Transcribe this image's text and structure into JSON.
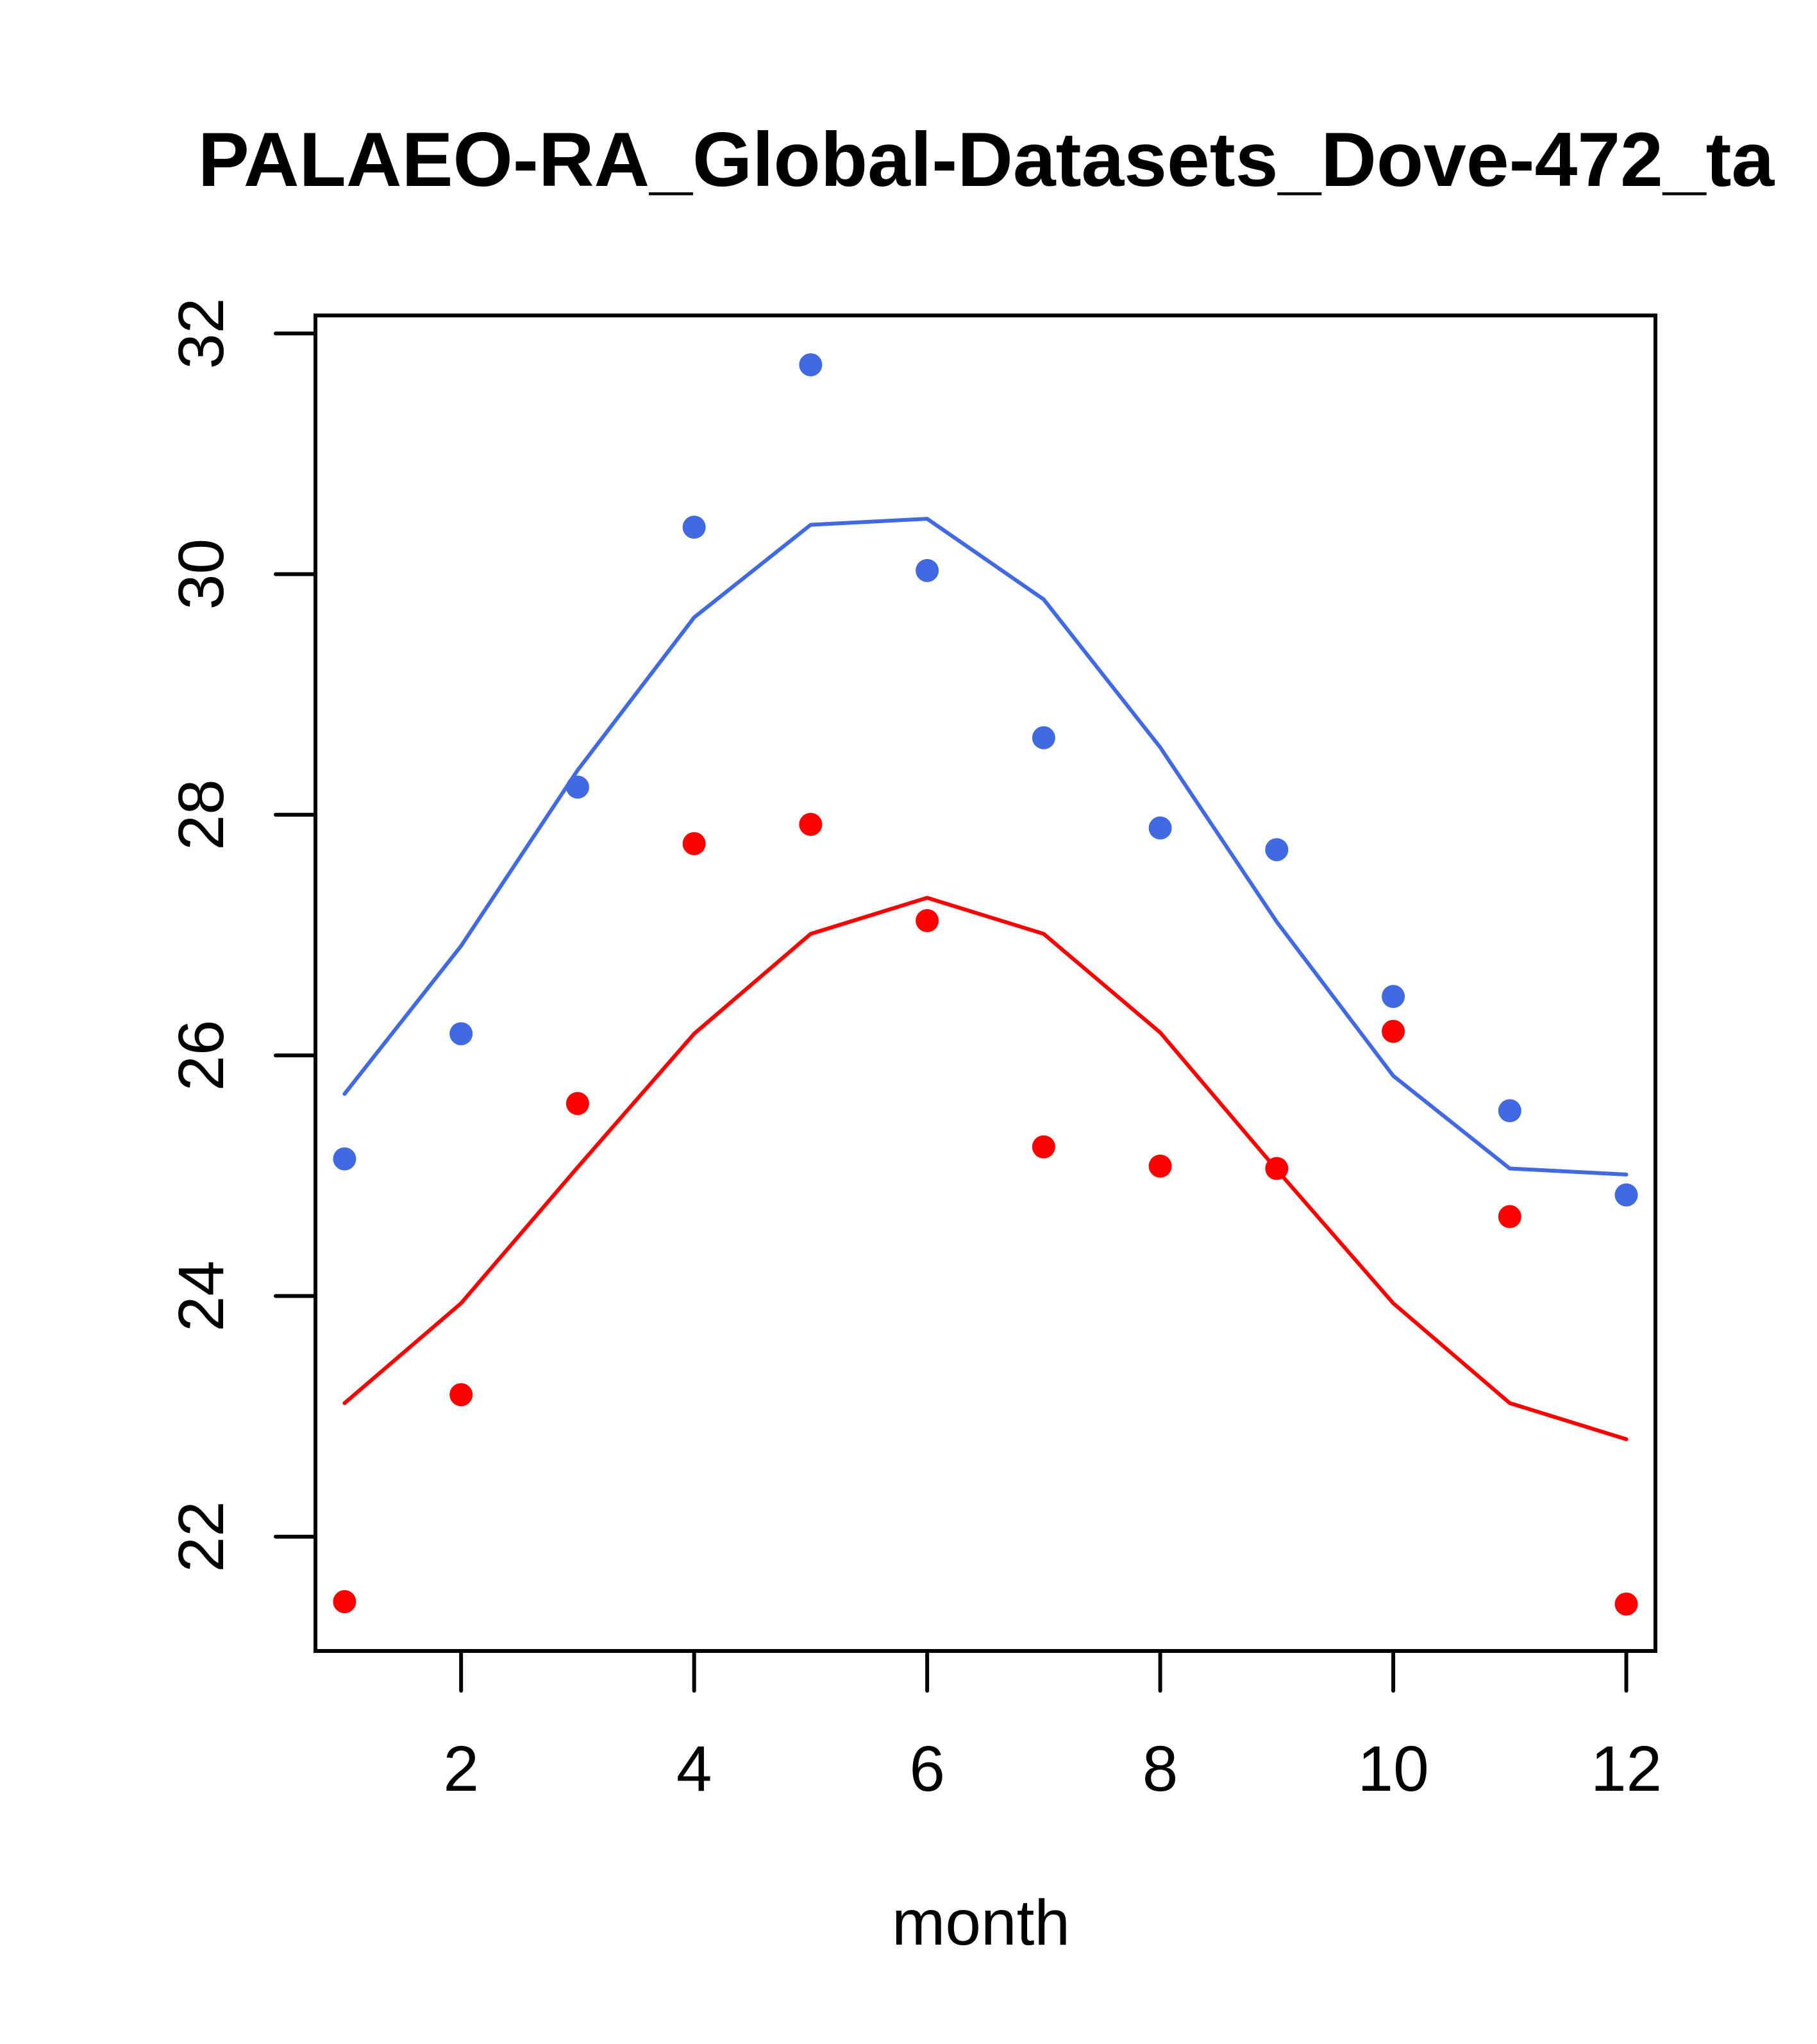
{
  "chart_data": {
    "type": "scatter",
    "title": "PALAEO-RA_Global-Datasets_Dove-472_ta",
    "xlabel": "month",
    "ylabel": "",
    "xlim": [
      0.75,
      12.25
    ],
    "ylim": [
      21.05,
      32.15
    ],
    "x_ticks": [
      2,
      4,
      6,
      8,
      10,
      12
    ],
    "x_tick_labels": [
      "2",
      "4",
      "6",
      "8",
      "10",
      "12"
    ],
    "y_ticks": [
      22,
      24,
      26,
      28,
      30,
      32
    ],
    "y_tick_labels": [
      "22",
      "24",
      "26",
      "28",
      "30",
      "32"
    ],
    "grid": false,
    "x": [
      1,
      2,
      3,
      4,
      5,
      6,
      7,
      8,
      9,
      10,
      11,
      12
    ],
    "series": [
      {
        "name": "blue-points",
        "kind": "points",
        "color": "#4169E1",
        "values": [
          25.14,
          26.18,
          28.23,
          30.39,
          31.74,
          30.03,
          28.64,
          27.89,
          27.71,
          26.49,
          25.54,
          24.84
        ]
      },
      {
        "name": "blue-line",
        "kind": "line",
        "color": "#4169E1",
        "values": [
          25.68,
          26.91,
          28.37,
          29.64,
          30.41,
          30.46,
          29.79,
          28.56,
          27.11,
          25.83,
          25.06,
          25.01
        ]
      },
      {
        "name": "red-points",
        "kind": "points",
        "color": "#FF0000",
        "values": [
          21.46,
          23.18,
          25.6,
          27.76,
          27.92,
          27.12,
          25.24,
          25.08,
          25.06,
          26.2,
          24.66,
          21.44
        ]
      },
      {
        "name": "red-line",
        "kind": "line",
        "color": "#FF0000",
        "values": [
          23.11,
          23.94,
          25.07,
          26.18,
          27.01,
          27.31,
          27.01,
          26.19,
          25.05,
          23.94,
          23.11,
          22.81
        ]
      }
    ]
  }
}
